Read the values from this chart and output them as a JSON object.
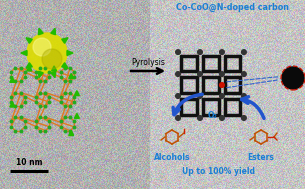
{
  "title": "Co-CoO@N-doped carbon",
  "arrow_label": "Pyrolysis",
  "label_alcohols": "Alcohols",
  "label_esters": "Esters",
  "label_o2": "O₂",
  "label_yield": "Up to 100% yield",
  "label_scale": "10 nm",
  "mof_frame_color": "#e07820",
  "mof_node_color": "#22aa22",
  "carbon_frame_color": "#111111",
  "carbon_node_color": "#333333",
  "nanoparticle_color": "#0a0a0a",
  "title_color": "#1a7fd4",
  "arrow_color": "#2255cc",
  "label_color": "#1a7fd4",
  "text_color": "#000000",
  "mol_color": "#c05000",
  "mol_red": "#cc2200",
  "figsize": [
    3.05,
    1.89
  ],
  "dpi": 100
}
